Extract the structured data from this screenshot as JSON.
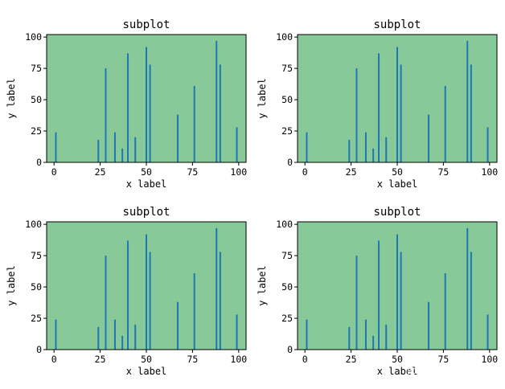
{
  "chart_data": {
    "type": "bar",
    "background_color": "#88c999",
    "bar_color": "#1f77b4",
    "axes": [
      {
        "title": "subplot",
        "xlabel": "x label",
        "ylabel": "y label",
        "xlim": [
          -4,
          104
        ],
        "ylim": [
          0,
          102
        ],
        "xticks": [
          0,
          25,
          50,
          75,
          100
        ],
        "yticks": [
          0,
          25,
          50,
          75,
          100
        ],
        "x": [
          1,
          24,
          28,
          33,
          37,
          40,
          44,
          50,
          52,
          67,
          76,
          88,
          90,
          99
        ],
        "values": [
          24,
          18,
          75,
          24,
          11,
          87,
          20,
          92,
          78,
          38,
          61,
          97,
          78,
          28
        ]
      },
      {
        "title": "subplot",
        "xlabel": "x label",
        "ylabel": "y label",
        "xlim": [
          -4,
          104
        ],
        "ylim": [
          0,
          102
        ],
        "xticks": [
          0,
          25,
          50,
          75,
          100
        ],
        "yticks": [
          0,
          25,
          50,
          75,
          100
        ],
        "x": [
          1,
          24,
          28,
          33,
          37,
          40,
          44,
          50,
          52,
          67,
          76,
          88,
          90,
          99
        ],
        "values": [
          24,
          18,
          75,
          24,
          11,
          87,
          20,
          92,
          78,
          38,
          61,
          97,
          78,
          28
        ]
      },
      {
        "title": "subplot",
        "xlabel": "x label",
        "ylabel": "y label",
        "xlim": [
          -4,
          104
        ],
        "ylim": [
          0,
          102
        ],
        "xticks": [
          0,
          25,
          50,
          75,
          100
        ],
        "yticks": [
          0,
          25,
          50,
          75,
          100
        ],
        "x": [
          1,
          24,
          28,
          33,
          37,
          40,
          44,
          50,
          52,
          67,
          76,
          88,
          90,
          99
        ],
        "values": [
          24,
          18,
          75,
          24,
          11,
          87,
          20,
          92,
          78,
          38,
          61,
          97,
          78,
          28
        ]
      },
      {
        "title": "subplot",
        "xlabel": "x label",
        "ylabel": "y label",
        "xlim": [
          -4,
          104
        ],
        "ylim": [
          0,
          102
        ],
        "xticks": [
          0,
          25,
          50,
          75,
          100
        ],
        "yticks": [
          0,
          25,
          50,
          75,
          100
        ],
        "x": [
          1,
          24,
          28,
          33,
          37,
          40,
          44,
          50,
          52,
          67,
          76,
          88,
          90,
          99
        ],
        "values": [
          24,
          18,
          75,
          24,
          11,
          87,
          20,
          92,
          78,
          38,
          61,
          97,
          78,
          28
        ]
      }
    ]
  },
  "watermark": "@稀土掘金技术社区"
}
